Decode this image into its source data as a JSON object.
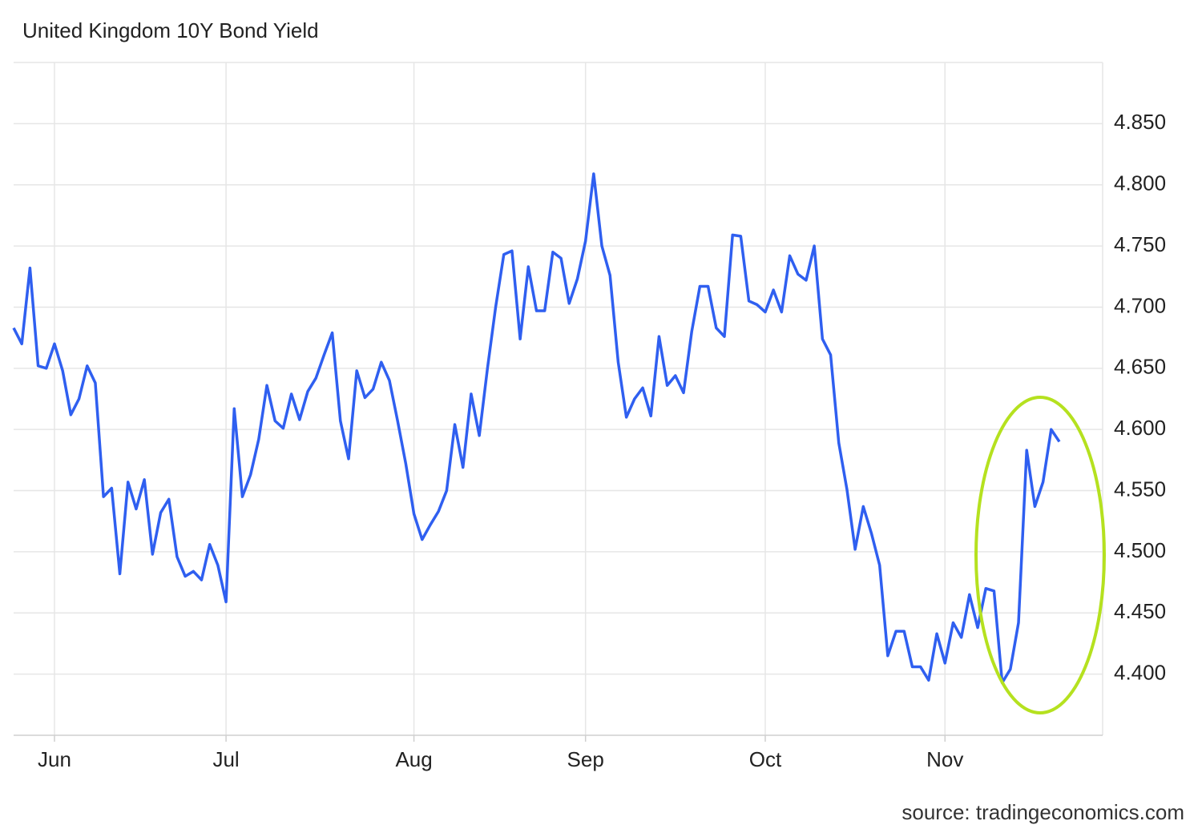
{
  "chart_data": {
    "type": "line",
    "title": "United Kingdom 10Y Bond Yield",
    "source": "source: tradingeconomics.com",
    "color": "#2f5ff0",
    "grid": true,
    "categories": [
      null,
      null,
      null,
      null,
      null,
      "Jun",
      null,
      null,
      null,
      null,
      null,
      null,
      null,
      null,
      null,
      null,
      null,
      null,
      null,
      null,
      null,
      null,
      null,
      null,
      null,
      null,
      "Jul",
      null,
      null,
      null,
      null,
      null,
      null,
      null,
      null,
      null,
      null,
      null,
      null,
      null,
      null,
      null,
      null,
      null,
      null,
      null,
      null,
      null,
      null,
      "Aug",
      null,
      null,
      null,
      null,
      null,
      null,
      null,
      null,
      null,
      null,
      null,
      null,
      null,
      null,
      null,
      null,
      null,
      null,
      null,
      null,
      "Sep",
      null,
      null,
      null,
      null,
      null,
      null,
      null,
      null,
      null,
      null,
      null,
      null,
      null,
      null,
      null,
      null,
      null,
      null,
      null,
      null,
      null,
      "Oct",
      null,
      null,
      null,
      null,
      null,
      null,
      null,
      null,
      null,
      null,
      null,
      null,
      null,
      null,
      null,
      null,
      null,
      null,
      null,
      null,
      null,
      "Nov",
      null,
      null,
      null,
      null,
      null,
      null,
      null,
      null,
      null,
      null,
      null,
      null,
      null,
      null
    ],
    "values": [
      4.683,
      4.67,
      4.732,
      4.652,
      4.65,
      4.67,
      4.648,
      4.612,
      4.625,
      4.652,
      4.638,
      4.545,
      4.552,
      4.482,
      4.557,
      4.535,
      4.559,
      4.498,
      4.532,
      4.543,
      4.496,
      4.48,
      4.484,
      4.477,
      4.506,
      4.489,
      4.459,
      4.617,
      4.545,
      4.563,
      4.592,
      4.636,
      4.607,
      4.601,
      4.629,
      4.608,
      4.631,
      4.642,
      4.661,
      4.679,
      4.607,
      4.576,
      4.648,
      4.626,
      4.633,
      4.655,
      4.64,
      4.607,
      4.572,
      4.531,
      4.51,
      4.522,
      4.533,
      4.55,
      4.604,
      4.569,
      4.629,
      4.595,
      4.65,
      4.7,
      4.743,
      4.746,
      4.674,
      4.733,
      4.697,
      4.697,
      4.745,
      4.74,
      4.703,
      4.723,
      4.754,
      4.809,
      4.75,
      4.726,
      4.655,
      4.61,
      4.625,
      4.634,
      4.611,
      4.676,
      4.636,
      4.644,
      4.63,
      4.68,
      4.717,
      4.717,
      4.683,
      4.676,
      4.759,
      4.758,
      4.705,
      4.702,
      4.696,
      4.714,
      4.696,
      4.742,
      4.727,
      4.722,
      4.75,
      4.674,
      4.661,
      4.589,
      4.551,
      4.502,
      4.537,
      4.515,
      4.489,
      4.415,
      4.435,
      4.435,
      4.406,
      4.406,
      4.395,
      4.433,
      4.409,
      4.442,
      4.43,
      4.465,
      4.438,
      4.47,
      4.468,
      4.393,
      4.404,
      4.442,
      4.583,
      4.537,
      4.557,
      4.6,
      4.59
    ],
    "ylim": [
      4.35,
      4.9
    ],
    "yticks": [
      {
        "value": 4.4,
        "label": "4.400"
      },
      {
        "value": 4.45,
        "label": "4.450"
      },
      {
        "value": 4.5,
        "label": "4.500"
      },
      {
        "value": 4.55,
        "label": "4.550"
      },
      {
        "value": 4.6,
        "label": "4.600"
      },
      {
        "value": 4.65,
        "label": "4.650"
      },
      {
        "value": 4.7,
        "label": "4.700"
      },
      {
        "value": 4.75,
        "label": "4.750"
      },
      {
        "value": 4.8,
        "label": "4.800"
      },
      {
        "value": 4.85,
        "label": "4.850"
      }
    ]
  }
}
